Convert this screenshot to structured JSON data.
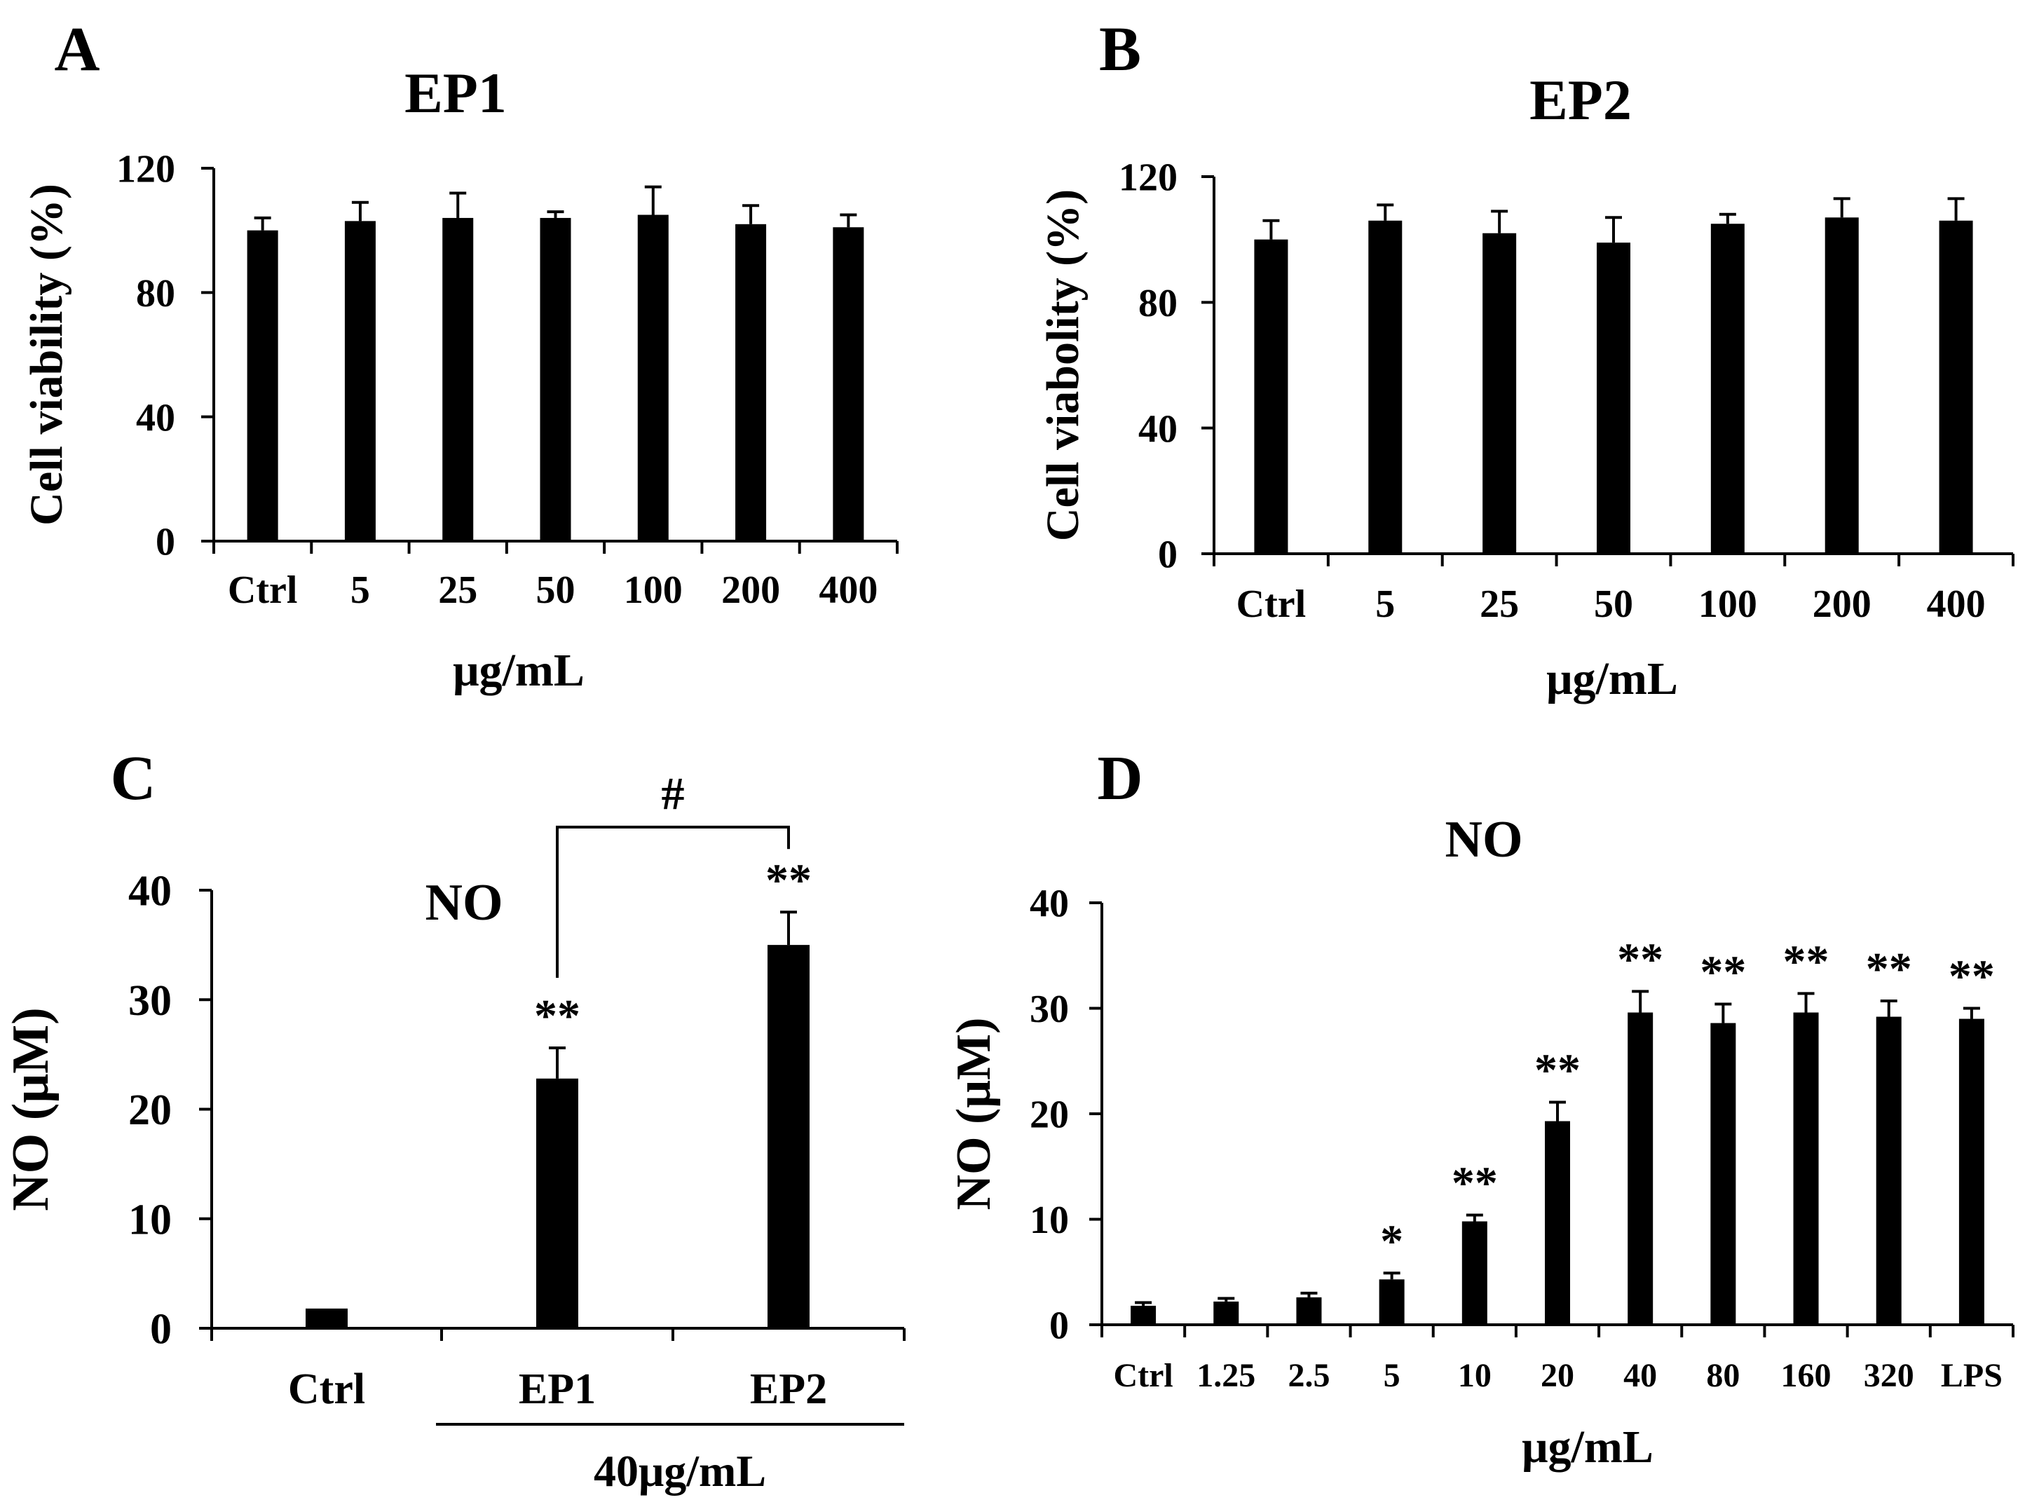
{
  "chart_data": [
    {
      "panel": "A",
      "type": "bar",
      "title": "EP1",
      "xlabel": "μg/mL",
      "ylabel": "Cell viability (%)",
      "ylim": [
        0,
        120
      ],
      "yticks": [
        "0",
        "40",
        "80",
        "120"
      ],
      "categories": [
        "Ctrl",
        "5",
        "25",
        "50",
        "100",
        "200",
        "400"
      ],
      "values": [
        100,
        103,
        104,
        104,
        105,
        102,
        101
      ],
      "errors": [
        4,
        6,
        8,
        2,
        9,
        6,
        4
      ]
    },
    {
      "panel": "B",
      "type": "bar",
      "title": "EP2",
      "xlabel": "μg/mL",
      "ylabel": "Cell viabolity (%)",
      "ylim": [
        0,
        120
      ],
      "yticks": [
        "0",
        "40",
        "80",
        "120"
      ],
      "categories": [
        "Ctrl",
        "5",
        "25",
        "50",
        "100",
        "200",
        "400"
      ],
      "values": [
        100,
        106,
        102,
        99,
        105,
        107,
        106
      ],
      "errors": [
        6,
        5,
        7,
        8,
        3,
        6,
        7
      ]
    },
    {
      "panel": "C",
      "type": "bar",
      "title": "NO",
      "xlabel": "40μg/mL",
      "ylabel": "NO (μM)",
      "ylim": [
        0,
        40
      ],
      "yticks": [
        "0",
        "10",
        "20",
        "30",
        "40"
      ],
      "categories": [
        "Ctrl",
        "EP1",
        "EP2"
      ],
      "values": [
        1.8,
        22.8,
        35
      ],
      "errors": [
        0,
        2.8,
        3
      ],
      "significance": [
        "",
        "**",
        "**"
      ],
      "comparison": {
        "from": "EP1",
        "to": "EP2",
        "label": "#"
      }
    },
    {
      "panel": "D",
      "type": "bar",
      "title": "NO",
      "xlabel": "μg/mL",
      "ylabel": "NO (μM)",
      "ylim": [
        0,
        40
      ],
      "yticks": [
        "0",
        "10",
        "20",
        "30",
        "40"
      ],
      "categories": [
        "Ctrl",
        "1.25",
        "2.5",
        "5",
        "10",
        "20",
        "40",
        "80",
        "160",
        "320",
        "LPS"
      ],
      "values": [
        1.8,
        2.2,
        2.6,
        4.3,
        9.8,
        19.3,
        29.6,
        28.6,
        29.6,
        29.2,
        29
      ],
      "errors": [
        0.3,
        0.3,
        0.4,
        0.6,
        0.6,
        1.8,
        2,
        1.8,
        1.8,
        1.5,
        1
      ],
      "significance": [
        "",
        "",
        "",
        "*",
        "**",
        "**",
        "**",
        "**",
        "**",
        "**",
        "**"
      ]
    }
  ]
}
